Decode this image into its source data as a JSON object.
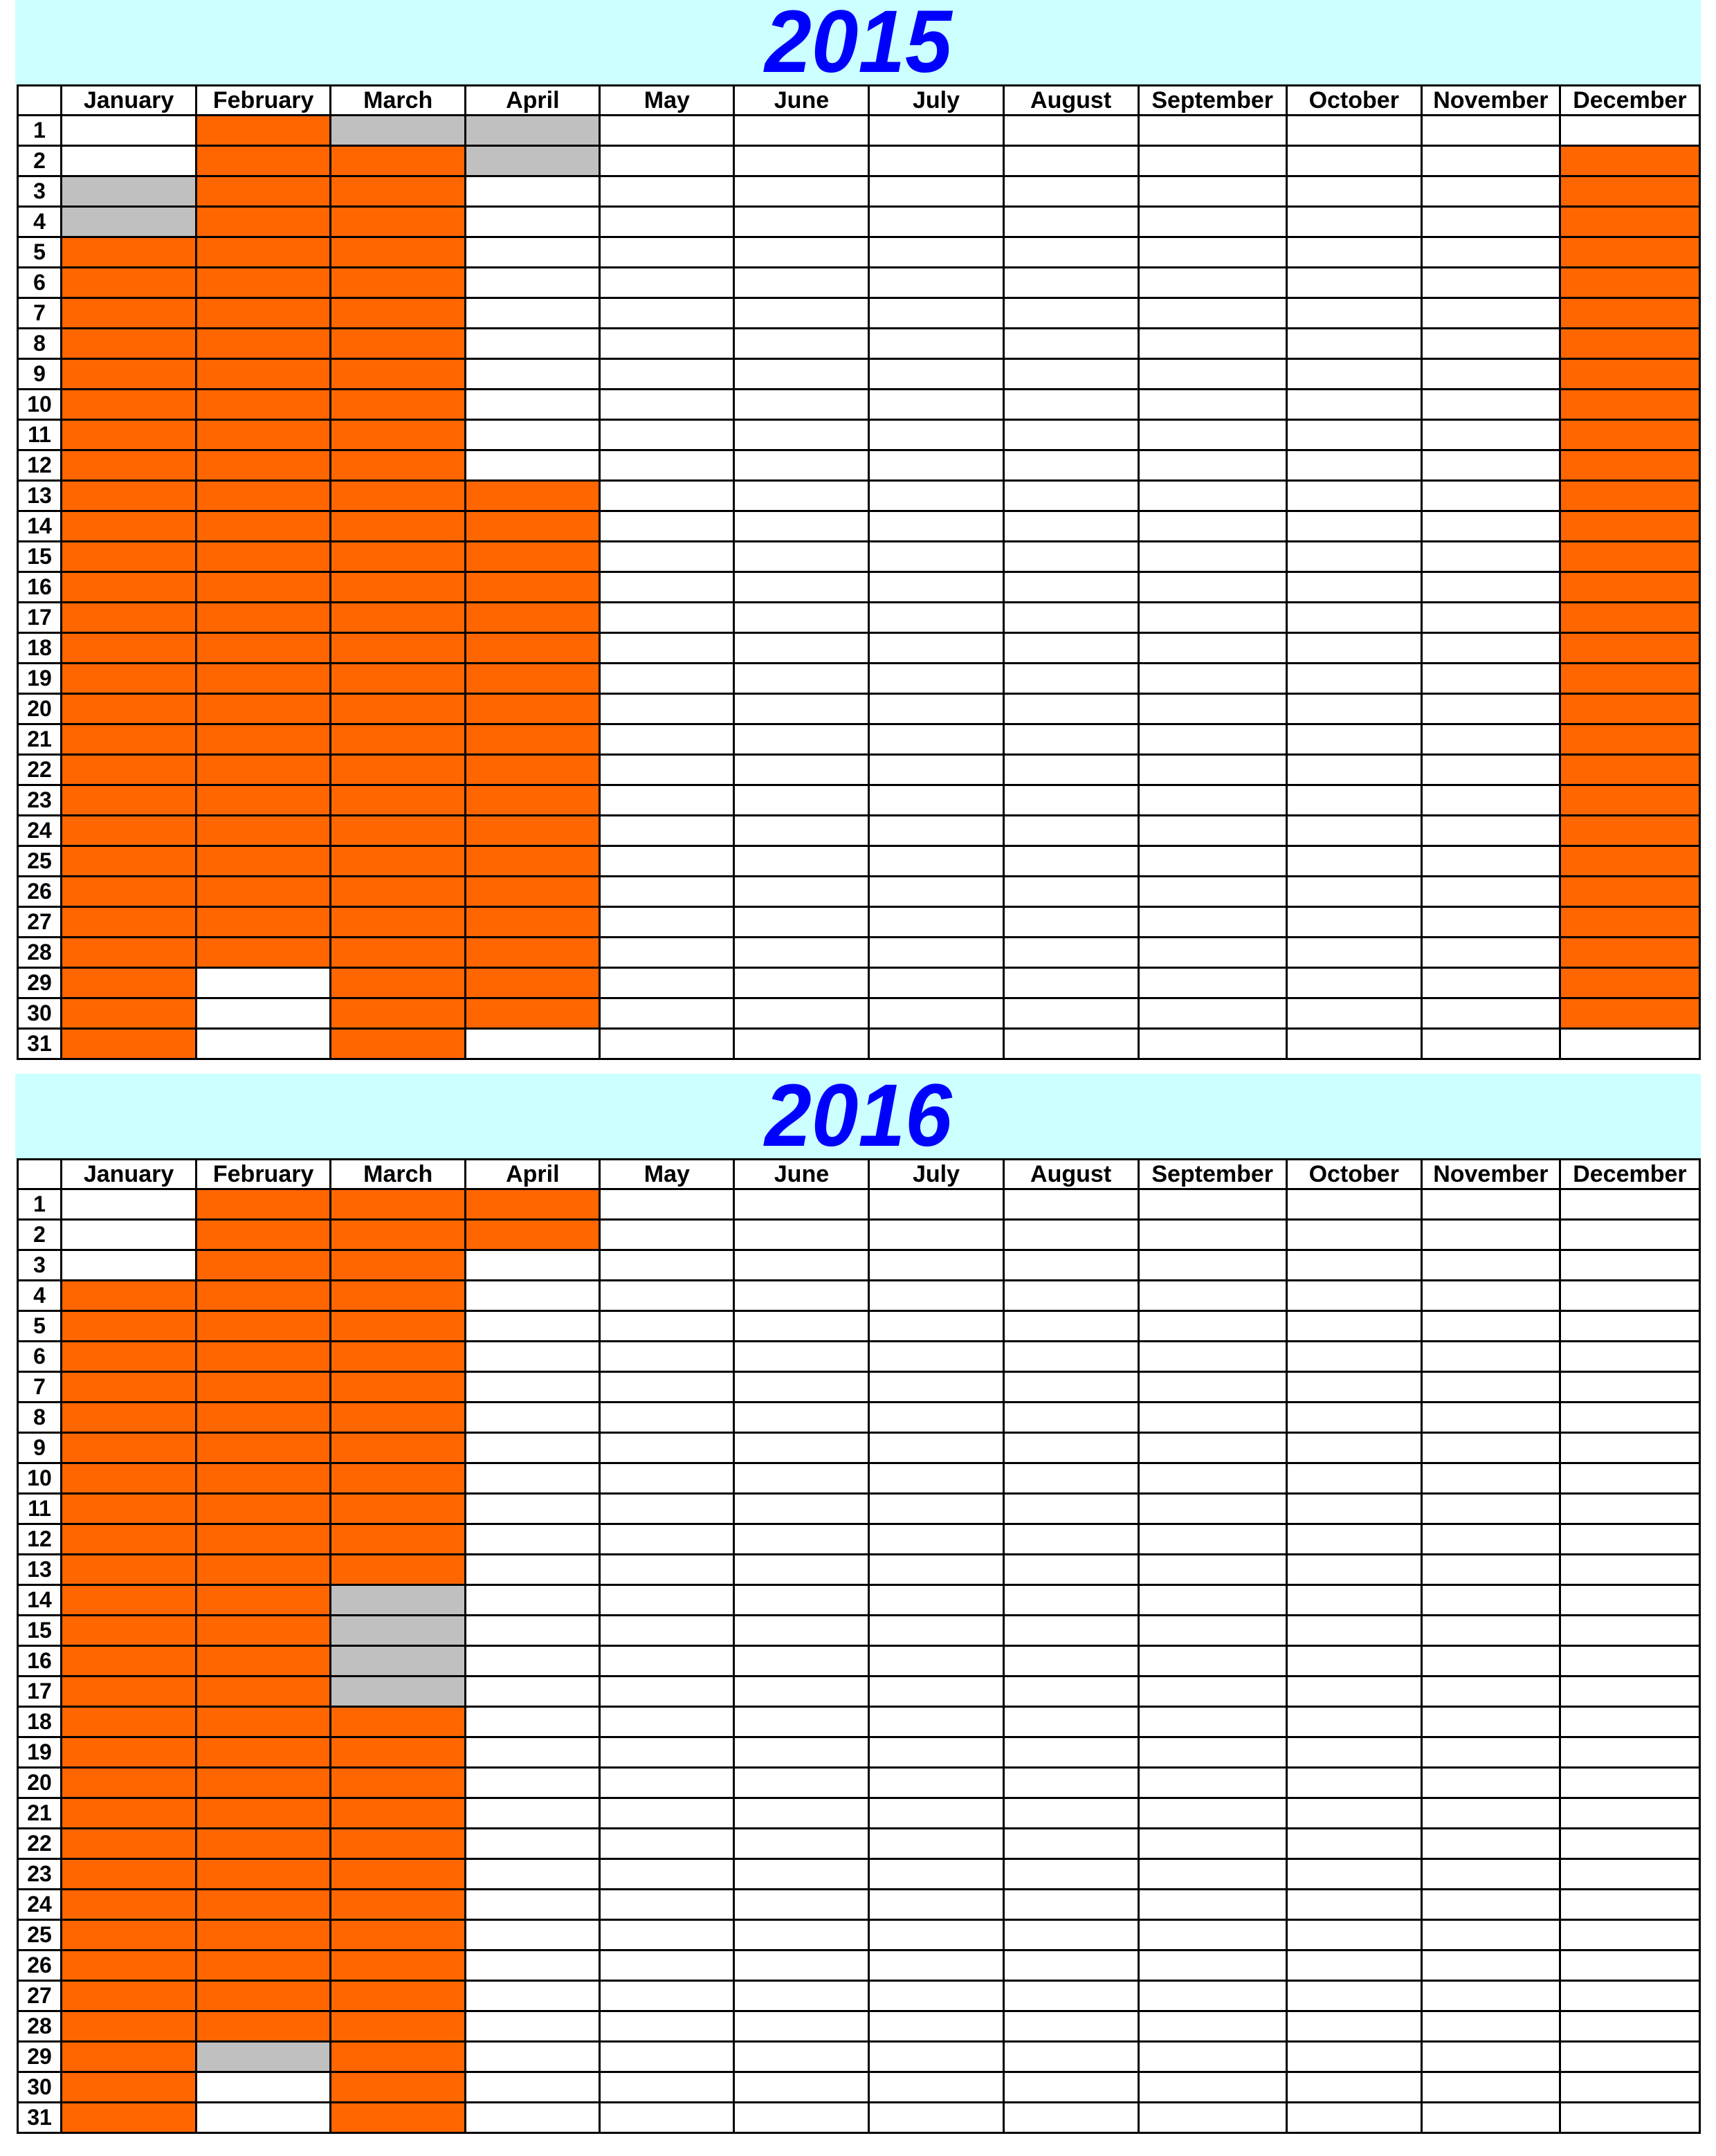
{
  "colors": {
    "O": "#ff6600",
    "G": "#c0c0c0",
    "W": "#ffffff",
    "title": "#0000ff",
    "band": "#ccffff"
  },
  "months": [
    "January",
    "February",
    "March",
    "April",
    "May",
    "June",
    "July",
    "August",
    "September",
    "October",
    "November",
    "December"
  ],
  "days": [
    "1",
    "2",
    "3",
    "4",
    "5",
    "6",
    "7",
    "8",
    "9",
    "10",
    "11",
    "12",
    "13",
    "14",
    "15",
    "16",
    "17",
    "18",
    "19",
    "20",
    "21",
    "22",
    "23",
    "24",
    "25",
    "26",
    "27",
    "28",
    "29",
    "30",
    "31"
  ],
  "years": [
    {
      "title": "2015",
      "status": [
        "WWGGOOOOOOOOOOOOOOOOOOOOOOOOOOO",
        "OOOOOOOOOOOOOOOOOOOOOOOOOOOOWWW",
        "GOOOOOOOOOOOOOOOOOOOOOOOOOOOOOO",
        "GGWWWWWWWWWWOOOOOOOOOOOOOOOOOOW",
        "WWWWWWWWWWWWWWWWWWWWWWWWWWWWWWW",
        "WWWWWWWWWWWWWWWWWWWWWWWWWWWWWWW",
        "WWWWWWWWWWWWWWWWWWWWWWWWWWWWWWW",
        "WWWWWWWWWWWWWWWWWWWWWWWWWWWWWWW",
        "WWWWWWWWWWWWWWWWWWWWWWWWWWWWWWW",
        "WWWWWWWWWWWWWWWWWWWWWWWWWWWWWWW",
        "WWWWWWWWWWWWWWWWWWWWWWWWWWWWWWW",
        "WOOOOOOOOOOOOOOOOOOOOOOOOOOOOOW"
      ]
    },
    {
      "title": "2016",
      "status": [
        "WWWOOOOOOOOOOOOOOOOOOOOOOOOOOOO",
        "OOOOOOOOOOOOOOOOOOOOOOOOOOOOGWW",
        "OOOOOOOOOOOOOGGGGOOOOOOOOOOOOOO",
        "OOWWWWWWWWWWWWWWWWWWWWWWWWWWWWW",
        "WWWWWWWWWWWWWWWWWWWWWWWWWWWWWWW",
        "WWWWWWWWWWWWWWWWWWWWWWWWWWWWWWW",
        "WWWWWWWWWWWWWWWWWWWWWWWWWWWWWWW",
        "WWWWWWWWWWWWWWWWWWWWWWWWWWWWWWW",
        "WWWWWWWWWWWWWWWWWWWWWWWWWWWWWWW",
        "WWWWWWWWWWWWWWWWWWWWWWWWWWWWWWW",
        "WWWWWWWWWWWWWWWWWWWWWWWWWWWWWWW",
        "WWWWWWWWWWWWWWWWWWWWWWWWWWWWWWW"
      ]
    }
  ]
}
